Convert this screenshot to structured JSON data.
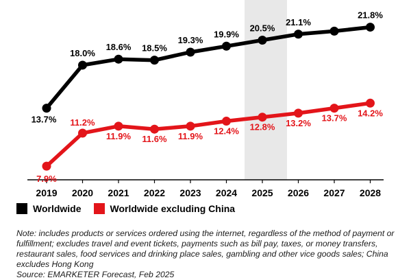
{
  "chart_data": {
    "type": "line",
    "x": [
      "2019",
      "2020",
      "2021",
      "2022",
      "2023",
      "2024",
      "2025",
      "2026",
      "2027",
      "2028"
    ],
    "series": [
      {
        "name": "Worldwide",
        "color": "#000000",
        "values": [
          13.7,
          18.0,
          18.6,
          18.5,
          19.3,
          19.9,
          20.5,
          21.1,
          21.4,
          21.8
        ],
        "labels": [
          "13.7%",
          "18.0%",
          "18.6%",
          "18.5%",
          "19.3%",
          "19.9%",
          "20.5%",
          "21.1%",
          null,
          "21.8%"
        ]
      },
      {
        "name": "Worldwide excluding China",
        "color": "#e3151a",
        "values": [
          7.9,
          11.2,
          11.9,
          11.6,
          11.9,
          12.4,
          12.8,
          13.2,
          13.7,
          14.2
        ],
        "labels": [
          "7.9%",
          "11.2%",
          "11.9%",
          "11.6%",
          "11.9%",
          "12.4%",
          "12.8%",
          "13.2%",
          "13.7%",
          "14.2%"
        ]
      }
    ],
    "highlight_category": "2025",
    "highlight_color": "#e8e8e8",
    "grid": false
  },
  "note": "Note: includes products or services ordered using the internet, regardless of the method of payment or fulfillment; excludes travel and event tickets, payments such as bill pay, taxes, or money transfers, restaurant sales, food services and drinking place sales, gambling and other vice goods sales; China excludes Hong Kong",
  "source": "Source: EMARKETER Forecast, Feb 2025"
}
